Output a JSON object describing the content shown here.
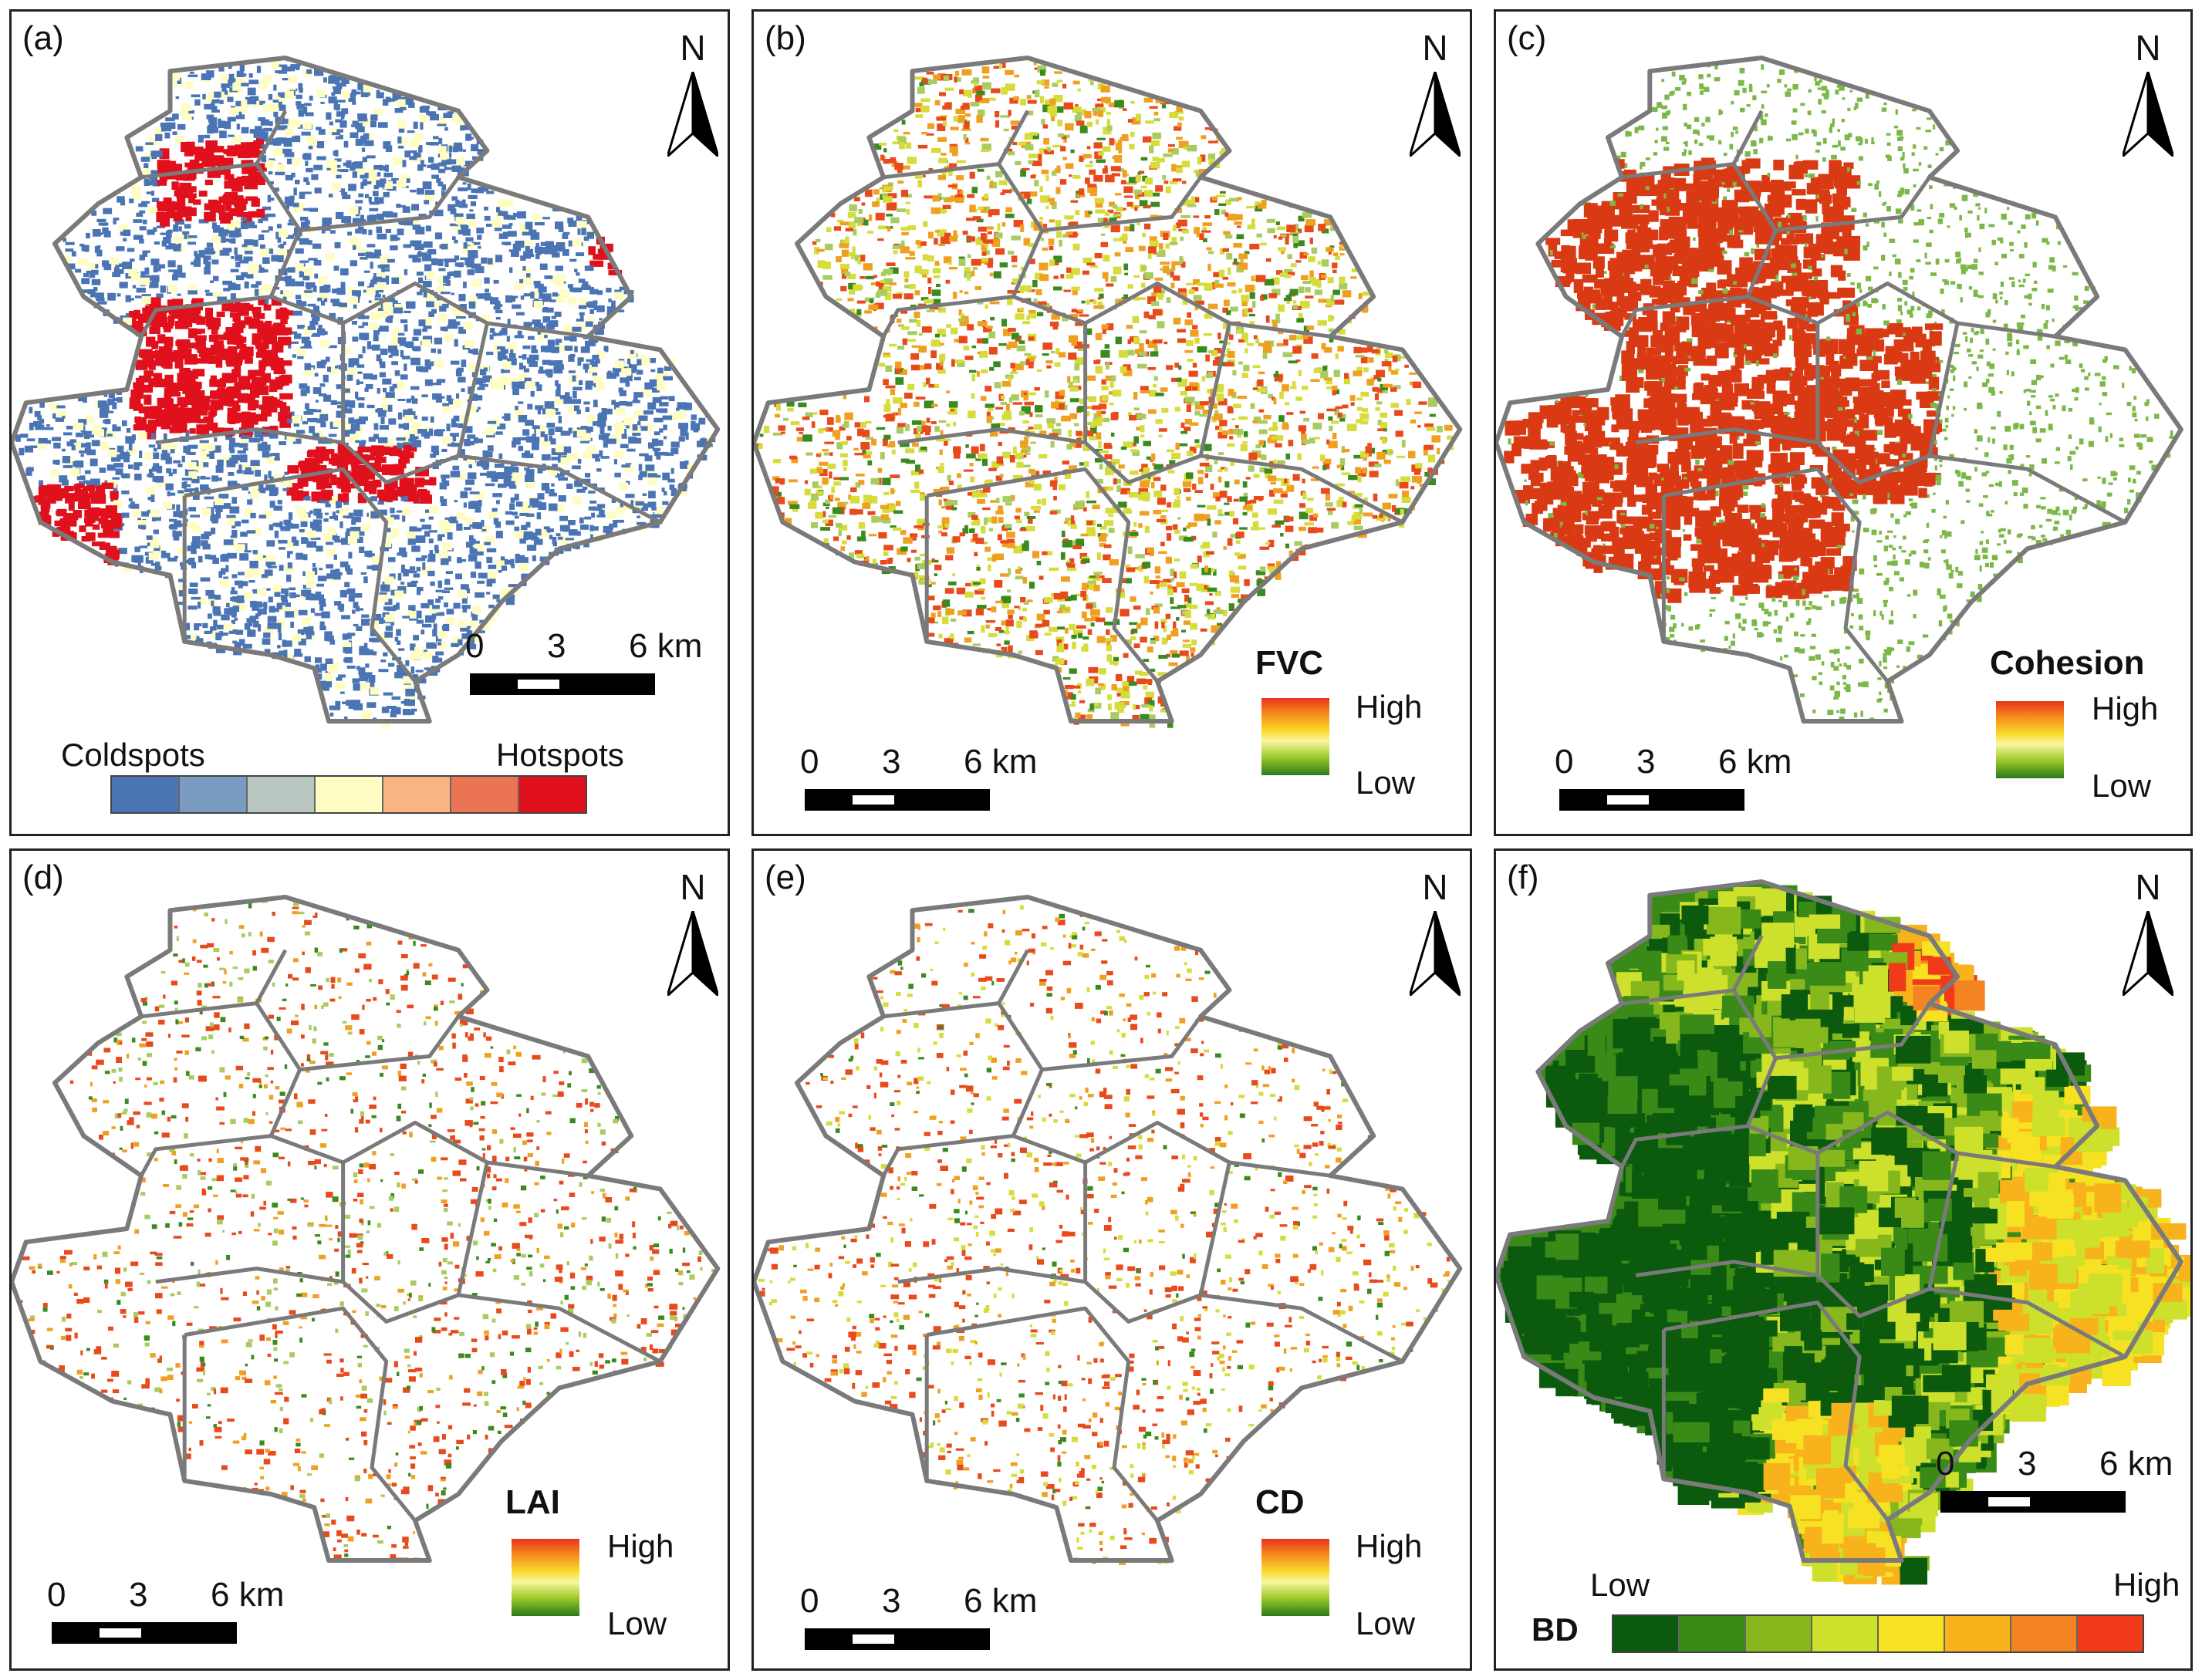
{
  "panels": [
    {
      "id": "a",
      "label": "(a)",
      "north": "N"
    },
    {
      "id": "b",
      "label": "(b)",
      "north": "N"
    },
    {
      "id": "c",
      "label": "(c)",
      "north": "N"
    },
    {
      "id": "d",
      "label": "(d)",
      "north": "N"
    },
    {
      "id": "e",
      "label": "(e)",
      "north": "N"
    },
    {
      "id": "f",
      "label": "(f)",
      "north": "N"
    }
  ],
  "scale": {
    "t0": "0",
    "t1": "3",
    "t2": "6 km"
  },
  "legend_a": {
    "left": "Coldspots",
    "right": "Hotspots",
    "colors": [
      "#4a74b4",
      "#7a9cc2",
      "#b8c8c0",
      "#fefec4",
      "#f8b482",
      "#ea7454",
      "#e0101c"
    ]
  },
  "legend_b": {
    "title": "FVC",
    "high": "High",
    "low": "Low"
  },
  "legend_c": {
    "title": "Cohesion",
    "high": "High",
    "low": "Low"
  },
  "legend_d": {
    "title": "LAI",
    "high": "High",
    "low": "Low"
  },
  "legend_e": {
    "title": "CD",
    "high": "High",
    "low": "Low"
  },
  "legend_f": {
    "title": "BD",
    "low": "Low",
    "high": "High",
    "colors": [
      "#0b5a0e",
      "#3a8a18",
      "#86b81e",
      "#cde02c",
      "#f6e222",
      "#f7b21c",
      "#f48322",
      "#f03a1a"
    ]
  },
  "colors": {
    "boundary": "#7a7a7a",
    "coldspot": "#4a74b4",
    "hotspot": "#e0101c",
    "neutral": "#fefec4",
    "veg_red": "#e84a1c",
    "veg_orange": "#f0a020",
    "veg_yellow": "#d6dc3a",
    "veg_green": "#3a8a1e",
    "veg_light": "#a8cc60",
    "coh_red": "#d93a14",
    "coh_green": "#7cb848"
  }
}
